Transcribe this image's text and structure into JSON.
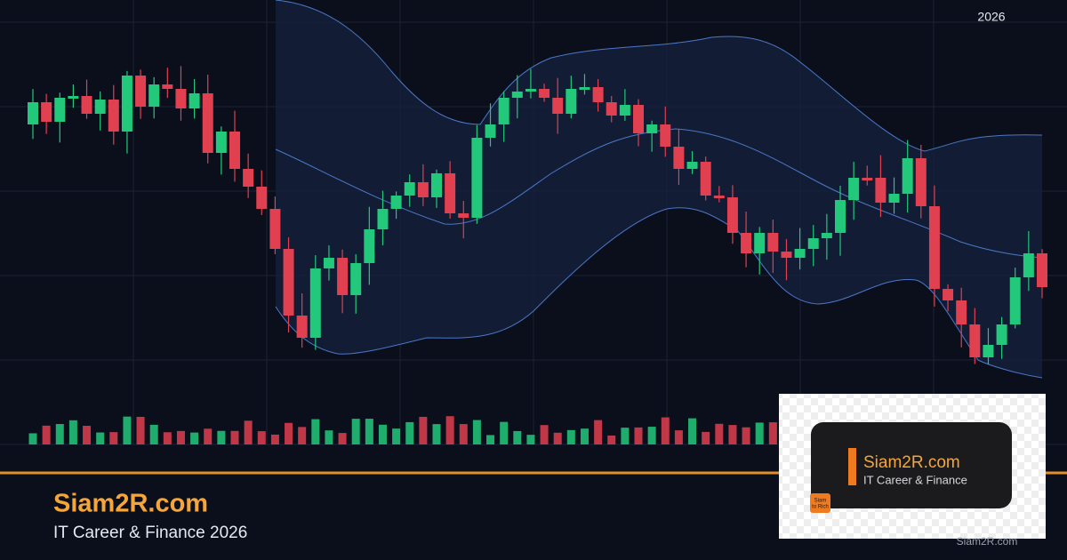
{
  "header": {
    "year": "2026"
  },
  "brand": {
    "title": "Siam2R.com",
    "subtitle": "IT Career & Finance 2026"
  },
  "card": {
    "title": "Siam2R.com",
    "subtitle": "IT Career & Finance",
    "logo": [
      "Siam",
      "to Rich"
    ]
  },
  "watermark": "Siam2R.com"
}
